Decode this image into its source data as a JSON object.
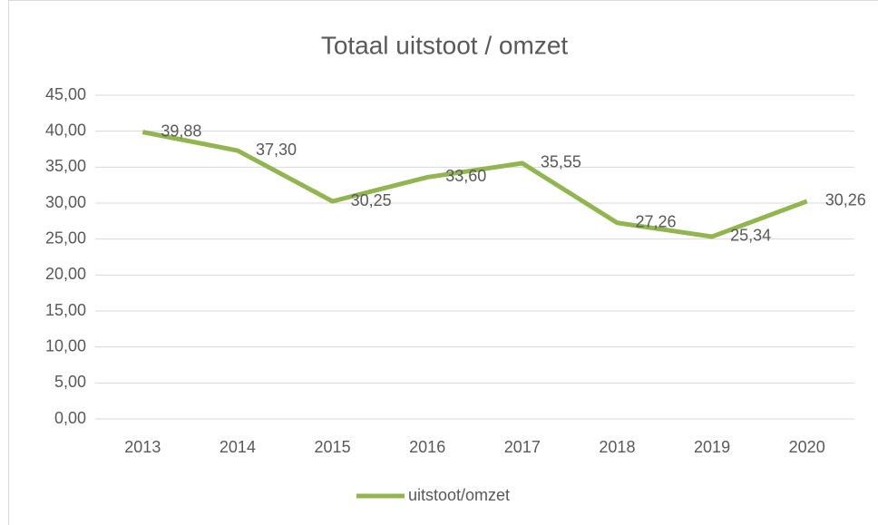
{
  "chart_data": {
    "type": "line",
    "title": "Totaal uitstoot  / omzet",
    "categories": [
      "2013",
      "2014",
      "2015",
      "2016",
      "2017",
      "2018",
      "2019",
      "2020"
    ],
    "series": [
      {
        "name": "uitstoot/omzet",
        "color": "#92b64f",
        "values": [
          39.88,
          37.3,
          30.25,
          33.6,
          35.55,
          27.26,
          25.34,
          30.26
        ],
        "value_labels": [
          "39,88",
          "37,30",
          "30,25",
          "33,60",
          "35,55",
          "27,26",
          "25,34",
          "30,26"
        ]
      }
    ],
    "ylim": [
      0,
      45
    ],
    "yticks": [
      {
        "value": 0,
        "label": "0,00"
      },
      {
        "value": 5,
        "label": "5,00"
      },
      {
        "value": 10,
        "label": "10,00"
      },
      {
        "value": 15,
        "label": "15,00"
      },
      {
        "value": 20,
        "label": "20,00"
      },
      {
        "value": 25,
        "label": "25,00"
      },
      {
        "value": 30,
        "label": "30,00"
      },
      {
        "value": 35,
        "label": "35,00"
      },
      {
        "value": 40,
        "label": "40,00"
      },
      {
        "value": 45,
        "label": "45,00"
      }
    ],
    "grid": true,
    "legend": "bottom"
  }
}
